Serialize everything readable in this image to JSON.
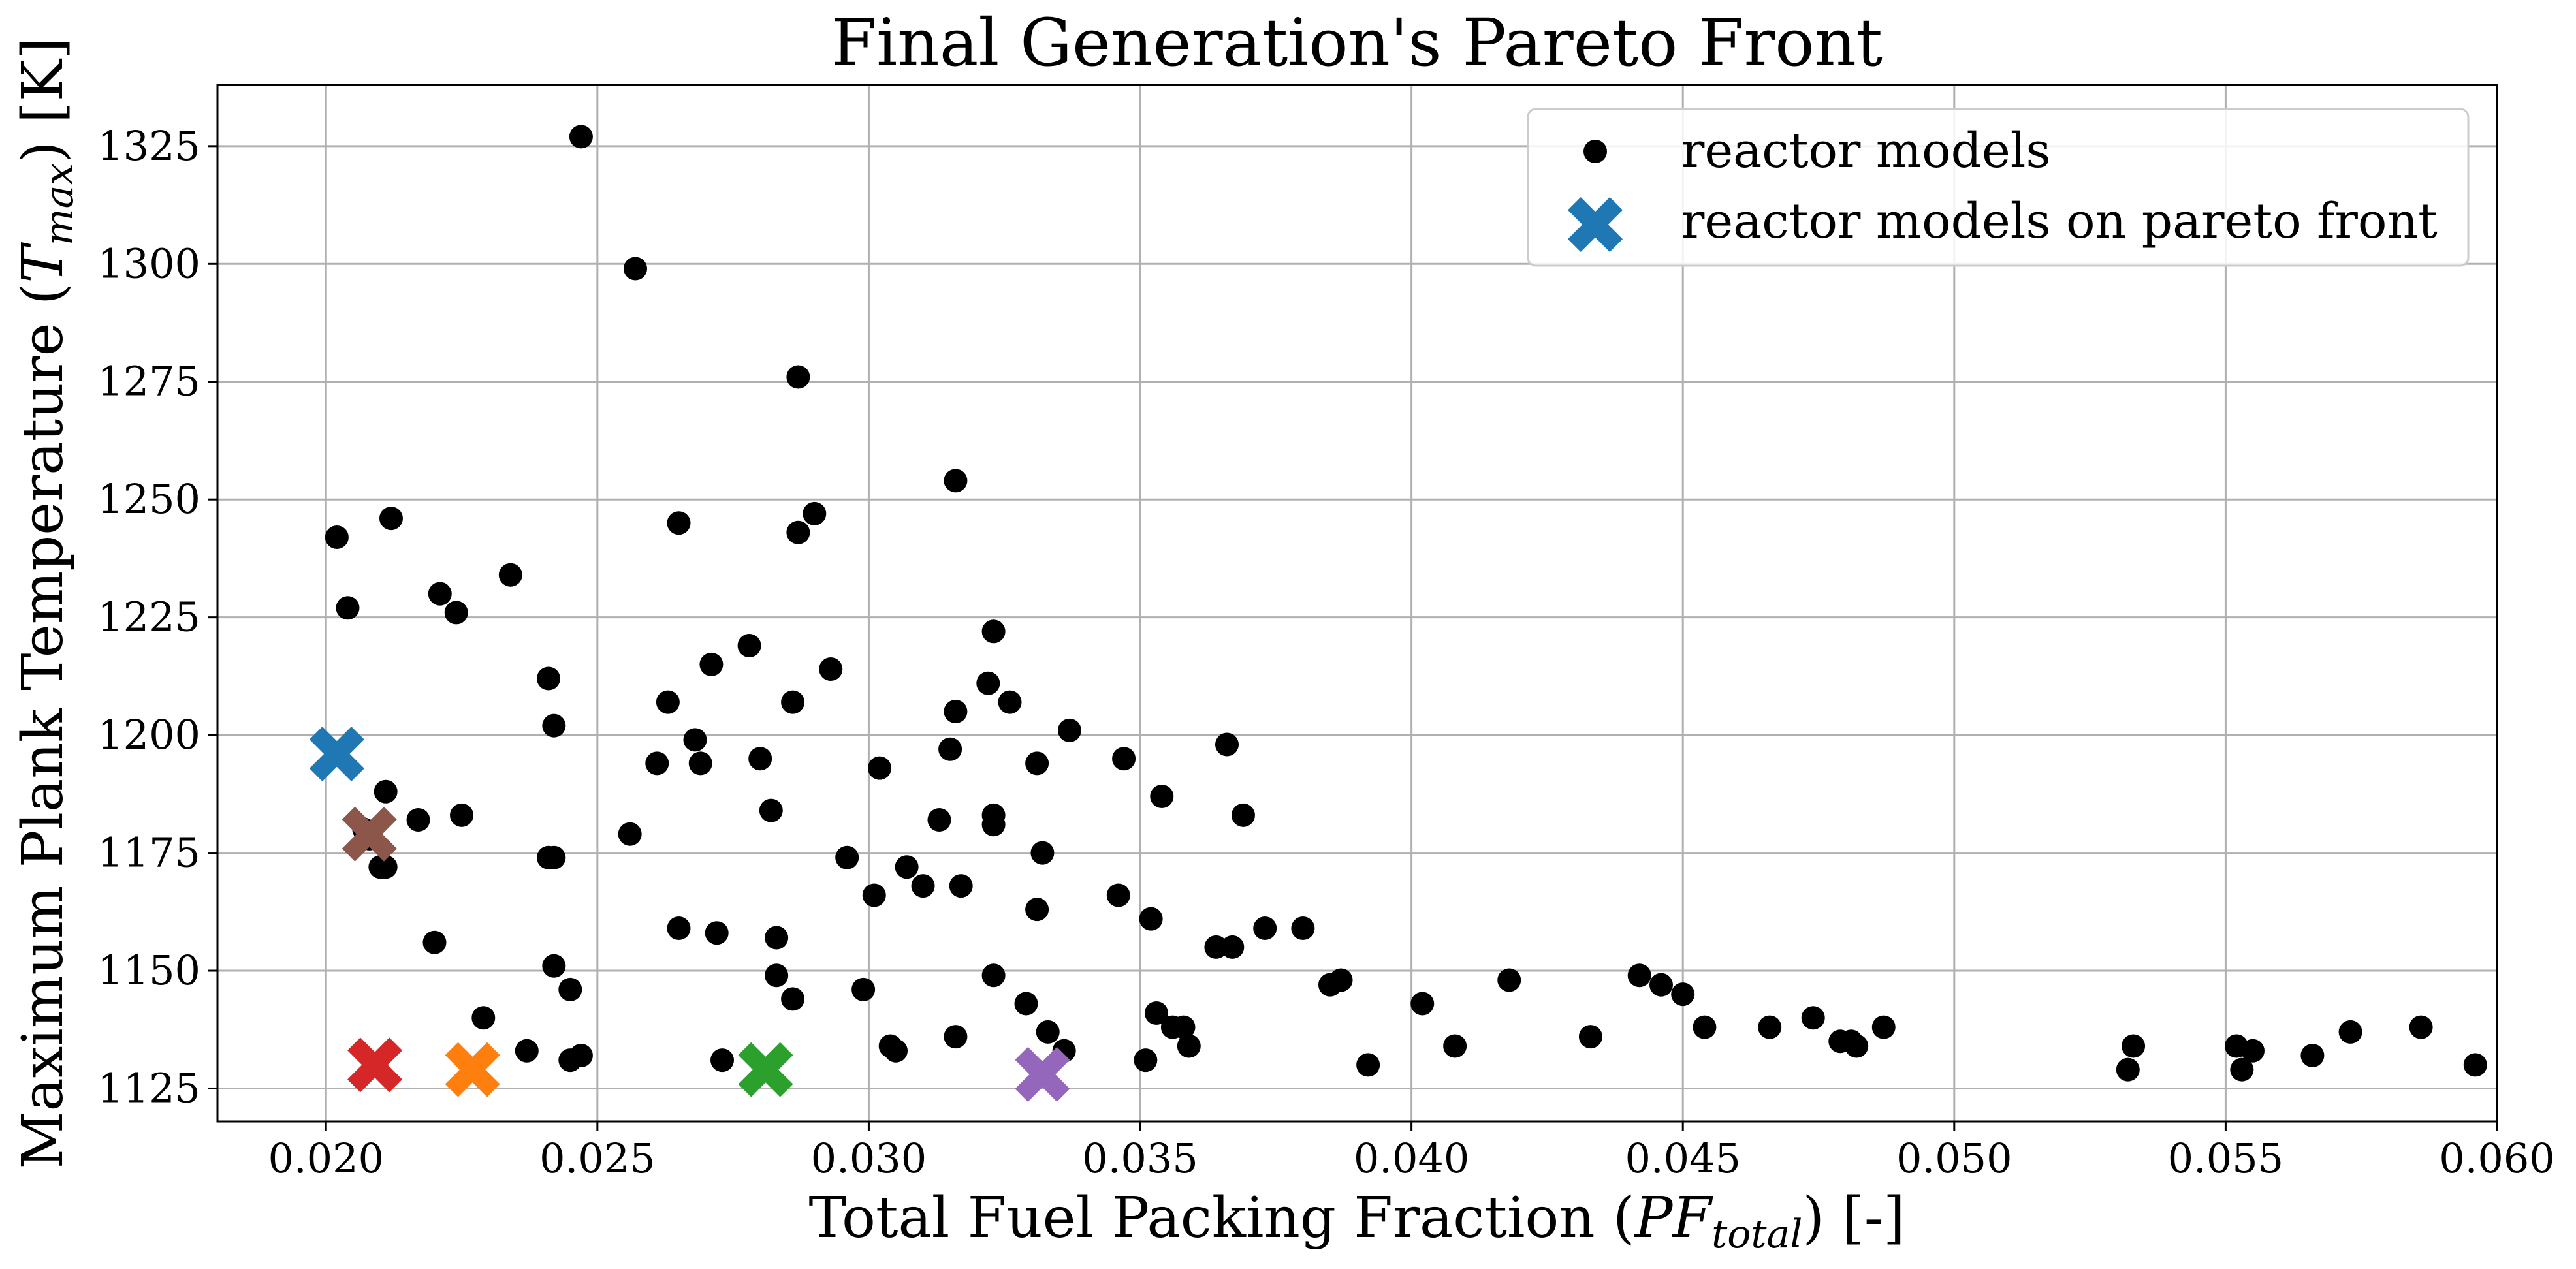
{
  "chart_data": {
    "type": "scatter",
    "title": "Final Generation's Pareto Front",
    "xlabel": {
      "prefix": "Total Fuel Packing Fraction (",
      "var_main": "PF",
      "var_sub": "total",
      "suffix": ") [-]"
    },
    "ylabel": {
      "prefix": "Maximum Plank Temperature (",
      "var_main": "T",
      "var_sub": "max",
      "suffix": ") [K]"
    },
    "xlim": [
      0.018,
      0.06
    ],
    "ylim": [
      1118,
      1338
    ],
    "x_ticks": [
      "0.020",
      "0.025",
      "0.030",
      "0.035",
      "0.040",
      "0.045",
      "0.050",
      "0.055",
      "0.060"
    ],
    "y_ticks": [
      "1125",
      "1150",
      "1175",
      "1200",
      "1225",
      "1250",
      "1275",
      "1300",
      "1325"
    ],
    "grid": true,
    "legend_position": "top-right",
    "series": [
      {
        "name": "reactor models",
        "marker": "circle",
        "color": "#000000",
        "x": [
          0.0247,
          0.0257,
          0.0287,
          0.0316,
          0.0212,
          0.0202,
          0.0265,
          0.029,
          0.0287,
          0.0234,
          0.0221,
          0.0204,
          0.0224,
          0.0323,
          0.0278,
          0.0241,
          0.0271,
          0.0293,
          0.0322,
          0.0263,
          0.0286,
          0.0326,
          0.0316,
          0.0242,
          0.0337,
          0.0268,
          0.0315,
          0.0366,
          0.0261,
          0.0269,
          0.028,
          0.0302,
          0.0331,
          0.0347,
          0.0211,
          0.0354,
          0.0282,
          0.0369,
          0.0323,
          0.0217,
          0.0323,
          0.0313,
          0.0225,
          0.0256,
          0.0332,
          0.0242,
          0.0296,
          0.0307,
          0.0211,
          0.031,
          0.0317,
          0.0301,
          0.0346,
          0.0331,
          0.0352,
          0.0241,
          0.0272,
          0.0265,
          0.0283,
          0.0373,
          0.038,
          0.0367,
          0.0364,
          0.022,
          0.0242,
          0.0283,
          0.0323,
          0.0299,
          0.0245,
          0.0358,
          0.0418,
          0.0442,
          0.0446,
          0.045,
          0.0474,
          0.0286,
          0.0329,
          0.0229,
          0.0353,
          0.0402,
          0.0356,
          0.0454,
          0.0466,
          0.0487,
          0.0387,
          0.0385,
          0.0333,
          0.0433,
          0.0408,
          0.0479,
          0.0482,
          0.0481,
          0.0533,
          0.0552,
          0.0555,
          0.0566,
          0.0573,
          0.0586,
          0.0596,
          0.0532,
          0.0553,
          0.0392,
          0.0359,
          0.0305,
          0.0304,
          0.0316,
          0.0336,
          0.0237,
          0.0247,
          0.0245,
          0.0273,
          0.0351,
          0.0208,
          0.021,
          0.0207
        ],
        "y": [
          1327,
          1299,
          1276,
          1254,
          1246,
          1242,
          1245,
          1247,
          1243,
          1234,
          1230,
          1227,
          1226,
          1222,
          1219,
          1212,
          1215,
          1214,
          1211,
          1207,
          1207,
          1207,
          1205,
          1202,
          1201,
          1199,
          1197,
          1198,
          1194,
          1194,
          1195,
          1193,
          1194,
          1195,
          1188,
          1187,
          1184,
          1183,
          1183,
          1182,
          1181,
          1182,
          1183,
          1179,
          1175,
          1174,
          1174,
          1172,
          1172,
          1168,
          1168,
          1166,
          1166,
          1163,
          1161,
          1174,
          1158,
          1159,
          1157,
          1159,
          1159,
          1155,
          1155,
          1156,
          1151,
          1149,
          1149,
          1146,
          1146,
          1138,
          1148,
          1149,
          1147,
          1145,
          1140,
          1144,
          1143,
          1140,
          1141,
          1143,
          1138,
          1138,
          1138,
          1138,
          1148,
          1147,
          1137,
          1136,
          1134,
          1135,
          1134,
          1135,
          1134,
          1134,
          1133,
          1132,
          1137,
          1138,
          1130,
          1129,
          1129,
          1130,
          1134,
          1133,
          1134,
          1136,
          1133,
          1133,
          1132,
          1131,
          1131,
          1131,
          1178,
          1172,
          1180
        ]
      },
      {
        "name": "reactor models on pareto front",
        "marker": "x",
        "x": [
          0.0202,
          0.0208,
          0.0209,
          0.0227,
          0.0281,
          0.0332
        ],
        "y": [
          1196,
          1179,
          1130,
          1129,
          1129,
          1128
        ],
        "colors": [
          "#1f77b4",
          "#8c564b",
          "#d62728",
          "#ff7f0e",
          "#2ca02c",
          "#9467bd"
        ]
      }
    ]
  }
}
